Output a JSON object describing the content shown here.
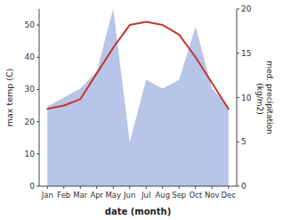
{
  "chart_data": {
    "type": "line",
    "categories": [
      "Jan",
      "Feb",
      "Mar",
      "Apr",
      "May",
      "Jun",
      "Jul",
      "Aug",
      "Sep",
      "Oct",
      "Nov",
      "Dec"
    ],
    "series": [
      {
        "type": "area",
        "color": "#b8c4e8",
        "axis": "y2",
        "values": [
          9,
          10,
          11,
          13,
          20,
          5,
          12,
          11,
          12,
          18,
          11,
          9
        ]
      },
      {
        "type": "line",
        "color": "#c0392b",
        "values": [
          24,
          25,
          27,
          35,
          43,
          50,
          51,
          50,
          47,
          40,
          32,
          24
        ]
      }
    ],
    "xlabel": "date (month)",
    "ylabel": "max temp (C)",
    "y2label": "med. precipitation\n (kg/m2)",
    "ylim": [
      0,
      55
    ],
    "yticks": [
      0,
      10,
      20,
      30,
      40,
      50
    ],
    "y2lim": [
      0,
      20
    ],
    "y2ticks": [
      0,
      5,
      10,
      15,
      20
    ],
    "grid": false
  }
}
